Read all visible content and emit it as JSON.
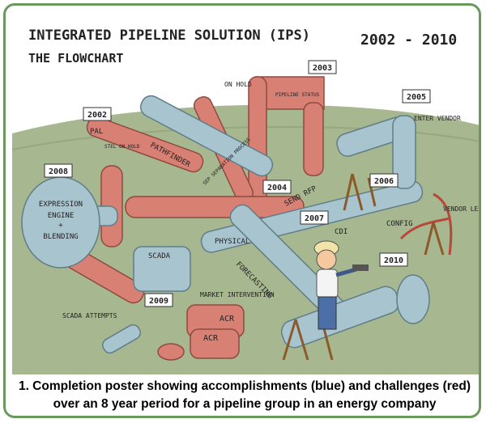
{
  "poster": {
    "title": "INTEGRATED PIPELINE SOLUTION (IPS)",
    "subtitle": "THE FLOWCHART",
    "years_range": "2002 - 2010",
    "flags": [
      "2002",
      "2003",
      "2004",
      "2005",
      "2006",
      "2007",
      "2008",
      "2009",
      "2010"
    ],
    "tank": {
      "line1": "EXPRESSION",
      "line2": "ENGINE",
      "plus": "+",
      "line3": "BLENDING"
    },
    "labels": {
      "pal": "PAL",
      "stel_on_hold": "STEL ON HOLD",
      "on_hold": "ON HOLD",
      "pipeline_status": "PIPELINE STATUS",
      "pathfinder": "PATHFINDER",
      "sep": "SEP SEPARATION PROCESS",
      "send_rfp": "SEND RFP",
      "enter_vendor": "ENTER VENDOR",
      "vendor_leaves": "VENDOR LEAVES",
      "physical": "PHYSICAL",
      "cdi": "CDI",
      "config": "CONFIG",
      "scada": "SCADA",
      "forecasting": "FORECASTING",
      "market_intervention": "MARKET INTERVENTION",
      "scada_attempts": "SCADA ATTEMPTS",
      "acr1": "ACR",
      "acr2": "ACR"
    }
  },
  "caption": "1. Completion poster showing accomplishments (blue) and challenges (red) over an 8 year period for a pipeline group in an energy company",
  "colors": {
    "blue_pipe": "#a8c4cf",
    "red_pipe": "#d98075",
    "ground": "#9fb089",
    "sky": "#ffffff",
    "border": "#6a9a5b"
  }
}
